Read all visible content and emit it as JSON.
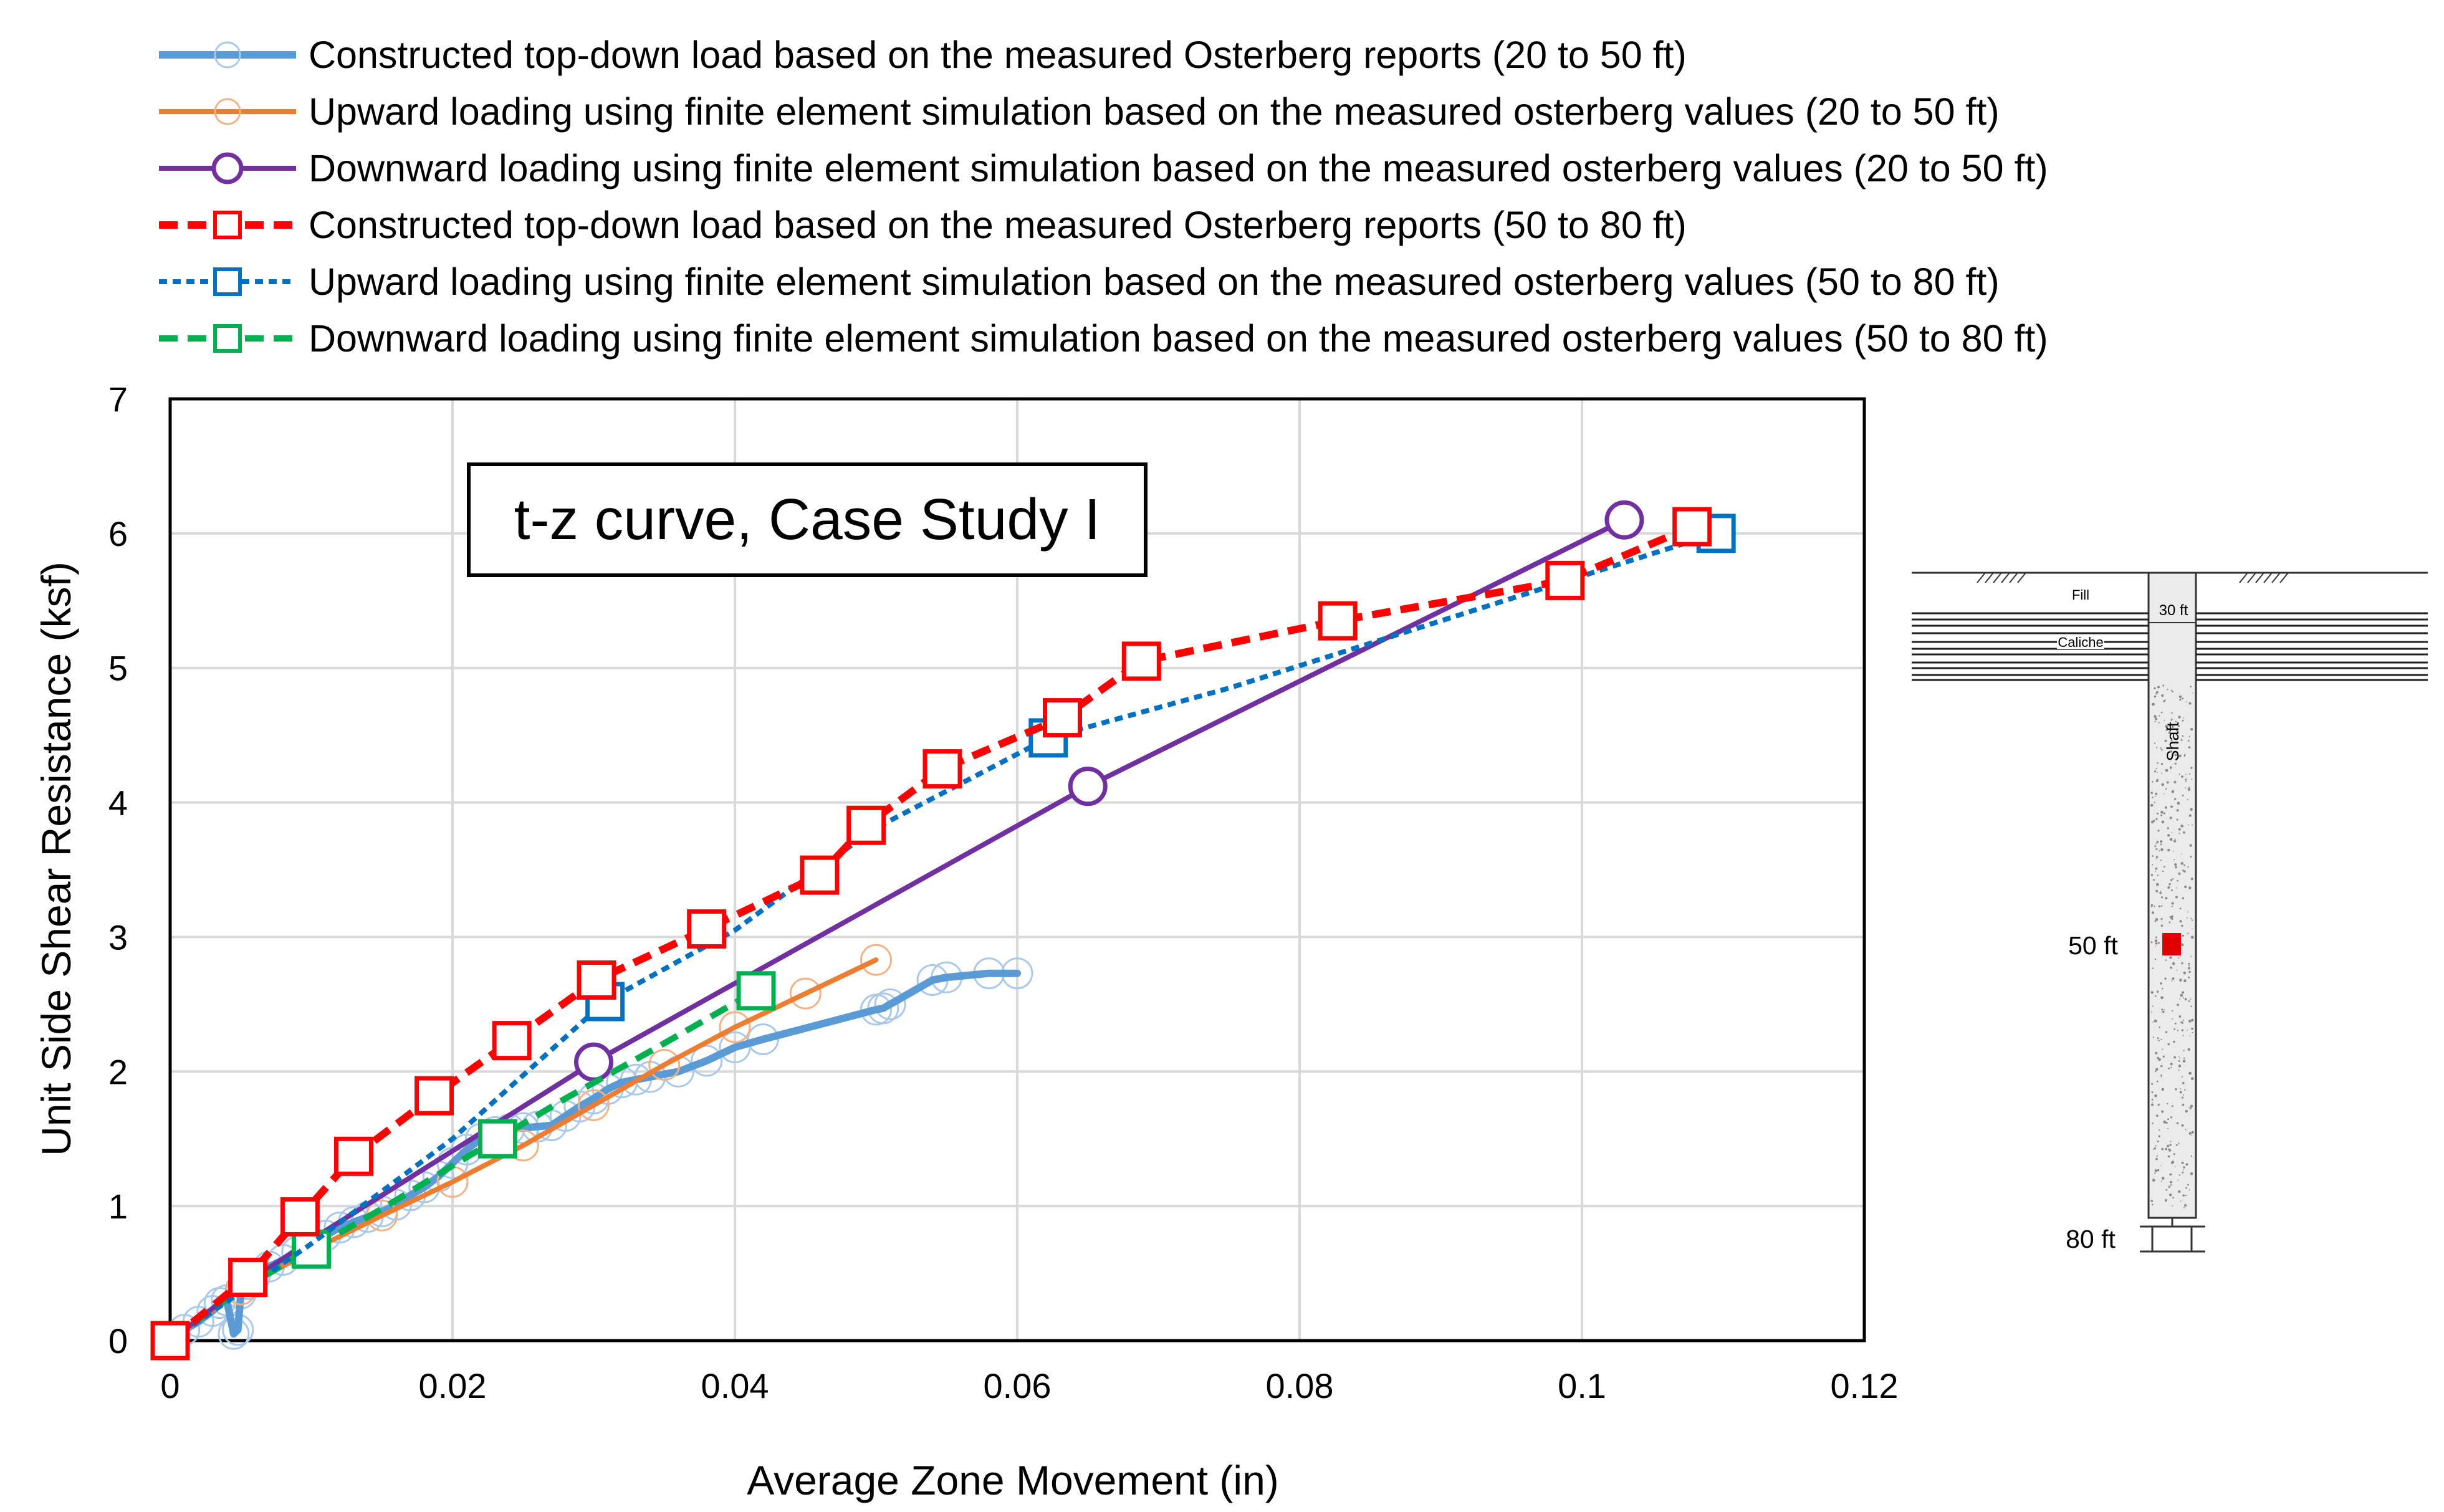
{
  "chart_data": {
    "type": "line",
    "title": "t-z curve, Case Study I",
    "xlabel": "Average Zone Movement (in)",
    "ylabel": "Unit Side Shear Resistance (ksf)",
    "xlim": [
      0,
      0.12
    ],
    "ylim": [
      0,
      7
    ],
    "xticks": [
      0,
      0.02,
      0.04,
      0.06,
      0.08,
      0.1,
      0.12
    ],
    "xtick_labels": [
      "0",
      "0.02",
      "0.04",
      "0.06",
      "0.08",
      "0.1",
      "0.12"
    ],
    "yticks": [
      0,
      1,
      2,
      3,
      4,
      5,
      6,
      7
    ],
    "ytick_labels": [
      "0",
      "1",
      "2",
      "3",
      "4",
      "5",
      "6",
      "7"
    ],
    "grid": true,
    "legend_position": "top",
    "series": [
      {
        "name": "Constructed top-down load based on the measured Osterberg reports (20 to 50 ft)",
        "color": "#5b9bd5",
        "line": "solid",
        "marker": "small-circle-light",
        "x": [
          0,
          0.001,
          0.002,
          0.003,
          0.0035,
          0.004,
          0.0045,
          0.0048,
          0.005,
          0.0055,
          0.006,
          0.007,
          0.008,
          0.009,
          0.01,
          0.011,
          0.012,
          0.013,
          0.014,
          0.015,
          0.016,
          0.017,
          0.018,
          0.019,
          0.02,
          0.021,
          0.022,
          0.023,
          0.024,
          0.025,
          0.026,
          0.027,
          0.028,
          0.029,
          0.03,
          0.031,
          0.032,
          0.033,
          0.034,
          0.036,
          0.038,
          0.04,
          0.042,
          0.05,
          0.0505,
          0.051,
          0.054,
          0.055,
          0.058,
          0.06
        ],
        "y": [
          0,
          0.08,
          0.14,
          0.22,
          0.28,
          0.3,
          0.05,
          0.08,
          0.35,
          0.42,
          0.48,
          0.55,
          0.6,
          0.66,
          0.72,
          0.78,
          0.84,
          0.88,
          0.92,
          0.96,
          1.01,
          1.08,
          1.14,
          1.22,
          1.32,
          1.42,
          1.5,
          1.55,
          1.57,
          1.58,
          1.59,
          1.6,
          1.67,
          1.74,
          1.8,
          1.87,
          1.92,
          1.94,
          1.96,
          2.0,
          2.08,
          2.18,
          2.24,
          2.46,
          2.47,
          2.5,
          2.68,
          2.7,
          2.73,
          2.73
        ]
      },
      {
        "name": "Upward loading using finite element simulation  based on the measured osterberg values  (20 to 50 ft)",
        "color": "#ed7d31",
        "line": "solid",
        "marker": "circle-faint",
        "x": [
          0,
          0.005,
          0.01,
          0.015,
          0.02,
          0.025,
          0.03,
          0.035,
          0.04,
          0.045,
          0.05
        ],
        "y": [
          0,
          0.38,
          0.67,
          0.93,
          1.18,
          1.45,
          1.75,
          2.05,
          2.33,
          2.58,
          2.83
        ]
      },
      {
        "name": "Downward loading using finite element simulation  based on the measured osterberg values  (20 to 50 ft)",
        "color": "#7030a0",
        "line": "solid",
        "marker": "circle",
        "x": [
          0,
          0.005,
          0.01,
          0.03,
          0.065,
          0.103
        ],
        "y": [
          0,
          0.4,
          0.75,
          2.07,
          4.12,
          6.1
        ]
      },
      {
        "name": "Constructed top-down load based on the measured Osterberg reports (50 to 80 ft)",
        "color": "#ff0000",
        "line": "dashed",
        "marker": "square",
        "x": [
          0,
          0.0055,
          0.0092,
          0.013,
          0.0187,
          0.0242,
          0.0302,
          0.038,
          0.046,
          0.0493,
          0.0547,
          0.0632,
          0.0688,
          0.0827,
          0.0988,
          0.1078
        ],
        "y": [
          0,
          0.47,
          0.92,
          1.37,
          1.82,
          2.23,
          2.68,
          3.06,
          3.46,
          3.83,
          4.25,
          4.63,
          5.05,
          5.35,
          5.65,
          6.05
        ]
      },
      {
        "name": "Upward loading using finite element simulation  based on the measured osterberg values  (50 to 80 ft)",
        "color": "#0070c0",
        "line": "dotted",
        "marker": "square",
        "x": [
          0,
          0.01,
          0.02,
          0.0308,
          0.04,
          0.0498,
          0.0622,
          0.075,
          0.09,
          0.1095
        ],
        "y": [
          0,
          0.72,
          1.5,
          2.52,
          3.05,
          3.8,
          4.48,
          4.85,
          5.35,
          6.0
        ]
      },
      {
        "name": "Downward loading using finite element simulation  based on the measured osterberg values  (50 to 80 ft)",
        "color": "#00b050",
        "line": "dashed",
        "marker": "square",
        "x": [
          0,
          0.005,
          0.01,
          0.015,
          0.02,
          0.0232,
          0.028,
          0.034,
          0.0415
        ],
        "y": [
          0,
          0.38,
          0.68,
          0.98,
          1.3,
          1.5,
          1.8,
          2.15,
          2.6
        ]
      }
    ]
  },
  "schematic": {
    "labels": {
      "fill": "Fill",
      "caliche": "Caliche",
      "shaft": "Shaft",
      "depth_30": "30 ft",
      "depth_50": "50 ft",
      "depth_80": "80 ft"
    },
    "marker_color": "#e00000"
  }
}
